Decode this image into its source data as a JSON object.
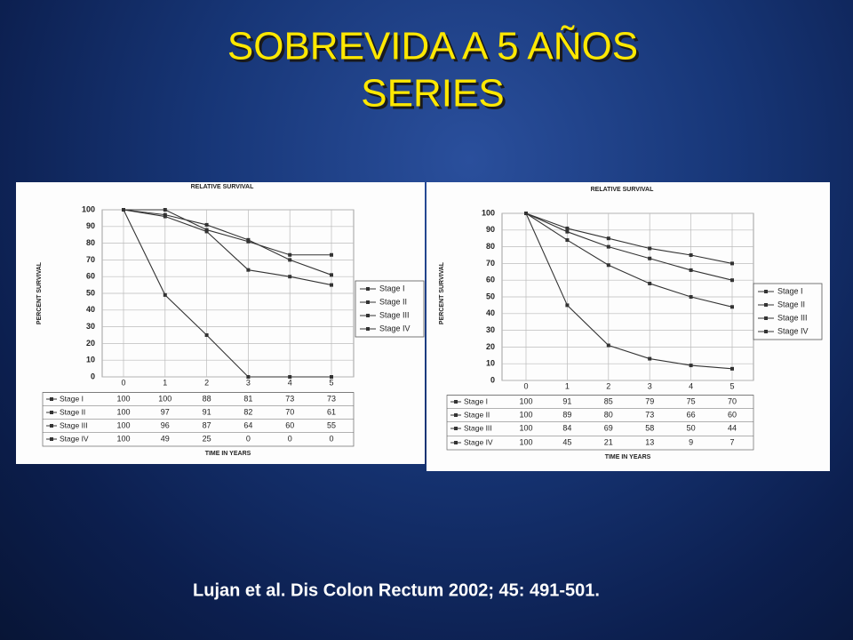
{
  "title_lines": [
    "SOBREVIDA A 5 AÑOS",
    "SERIES"
  ],
  "citation": "Lujan et al. Dis Colon Rectum 2002; 45: 491-501.",
  "chart_data": [
    {
      "type": "line",
      "title": "RELATIVE SURVIVAL",
      "y_label": "PERCENT SURVIVAL",
      "x_label": "TIME IN YEARS",
      "x": [
        0,
        1,
        2,
        3,
        4,
        5
      ],
      "xlim": [
        0,
        5
      ],
      "ylim": [
        0,
        100
      ],
      "yticks": [
        0,
        10,
        20,
        30,
        40,
        50,
        60,
        70,
        80,
        90,
        100
      ],
      "grid": true,
      "legend": "right",
      "series": [
        {
          "name": "Stage I",
          "color": "#333333",
          "values": [
            100,
            100,
            88,
            81,
            73,
            73
          ]
        },
        {
          "name": "Stage II",
          "color": "#333333",
          "values": [
            100,
            97,
            91,
            82,
            70,
            61
          ]
        },
        {
          "name": "Stage III",
          "color": "#333333",
          "values": [
            100,
            96,
            87,
            64,
            60,
            55
          ]
        },
        {
          "name": "Stage IV",
          "color": "#333333",
          "values": [
            100,
            49,
            25,
            0,
            0,
            0
          ]
        }
      ]
    },
    {
      "type": "line",
      "title": "RELATIVE SURVIVAL",
      "y_label": "PERCENT SURVIVAL",
      "x_label": "TIME IN YEARS",
      "x": [
        0,
        1,
        2,
        3,
        4,
        5
      ],
      "xlim": [
        0,
        5
      ],
      "ylim": [
        0,
        100
      ],
      "yticks": [
        0,
        10,
        20,
        30,
        40,
        50,
        60,
        70,
        80,
        90,
        100
      ],
      "grid": true,
      "legend": "right",
      "series": [
        {
          "name": "Stage I",
          "color": "#333333",
          "values": [
            100,
            91,
            85,
            79,
            75,
            70
          ]
        },
        {
          "name": "Stage II",
          "color": "#333333",
          "values": [
            100,
            89,
            80,
            73,
            66,
            60
          ]
        },
        {
          "name": "Stage III",
          "color": "#333333",
          "values": [
            100,
            84,
            69,
            58,
            50,
            44
          ]
        },
        {
          "name": "Stage IV",
          "color": "#333333",
          "values": [
            100,
            45,
            21,
            13,
            9,
            7
          ]
        }
      ]
    }
  ]
}
